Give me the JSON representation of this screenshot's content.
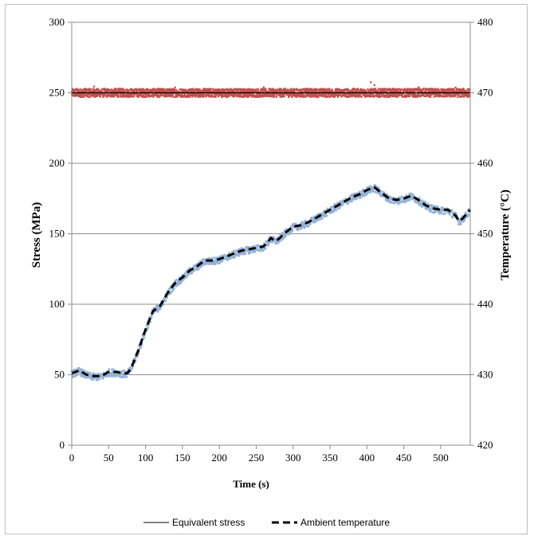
{
  "chart_data": {
    "type": "line",
    "xlabel": "Time (s)",
    "ylabel_left": "Stress (MPa)",
    "ylabel_right": "Temperature (°C)",
    "xlim": [
      0,
      540
    ],
    "ylim_left": [
      0,
      300
    ],
    "ylim_right": [
      420,
      480
    ],
    "x_ticks": [
      "0",
      "50",
      "100",
      "150",
      "200",
      "250",
      "300",
      "350",
      "400",
      "450",
      "500"
    ],
    "y_left_ticks": [
      "0",
      "50",
      "100",
      "150",
      "200",
      "250",
      "300"
    ],
    "y_right_ticks": [
      "420",
      "430",
      "440",
      "450",
      "460",
      "470",
      "480"
    ],
    "grid": true,
    "legend_position": "bottom",
    "series": [
      {
        "name": "Equivalent stress",
        "axis": "left",
        "style": "solid",
        "color": "#000000",
        "x": [
          0,
          540
        ],
        "values": [
          250,
          250
        ]
      },
      {
        "name": "Ambient temperature",
        "axis": "left",
        "style": "dashed",
        "color": "#000000",
        "x": [
          0,
          10,
          20,
          30,
          40,
          50,
          60,
          70,
          75,
          80,
          90,
          100,
          110,
          120,
          130,
          140,
          150,
          160,
          170,
          180,
          190,
          200,
          210,
          220,
          230,
          240,
          250,
          260,
          270,
          275,
          280,
          290,
          300,
          310,
          320,
          330,
          340,
          350,
          360,
          370,
          380,
          390,
          400,
          410,
          420,
          430,
          440,
          450,
          460,
          470,
          480,
          490,
          500,
          510,
          520,
          525,
          530,
          540
        ],
        "values": [
          51,
          53,
          50,
          49,
          49,
          52,
          52,
          51,
          51,
          54,
          67,
          82,
          95,
          99,
          108,
          115,
          119,
          124,
          127,
          131,
          131,
          132,
          134,
          136,
          138,
          139,
          140,
          141,
          147,
          145,
          146,
          151,
          155,
          156,
          158,
          161,
          164,
          167,
          170,
          173,
          176,
          178,
          181,
          183,
          179,
          175,
          174,
          175,
          177,
          174,
          170,
          168,
          167,
          167,
          163,
          159,
          161,
          167
        ]
      }
    ],
    "scatter_series": [
      {
        "color": "#c0504d",
        "axis": "left",
        "center": 250,
        "spread": 3
      },
      {
        "color": "#95b3d7",
        "axis": "left",
        "follows": "Ambient temperature",
        "spread": 2.5
      }
    ]
  }
}
